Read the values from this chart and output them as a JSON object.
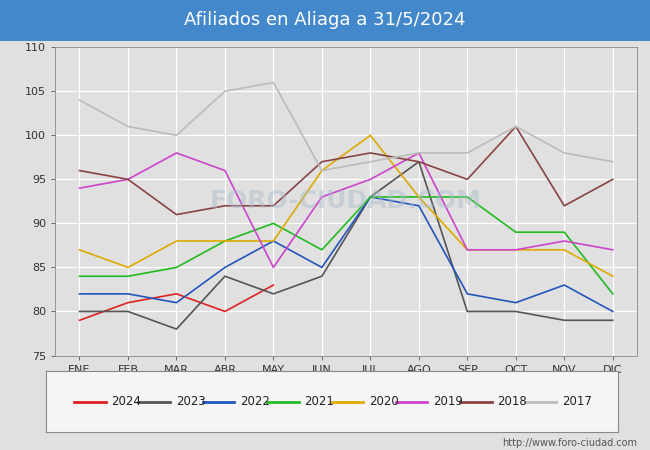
{
  "title": "Afiliados en Aliaga a 31/5/2024",
  "title_color": "#ffffff",
  "title_bg_color": "#4488cc",
  "xlabel": "",
  "ylabel": "",
  "ylim": [
    75,
    110
  ],
  "yticks": [
    75,
    80,
    85,
    90,
    95,
    100,
    105,
    110
  ],
  "months": [
    "ENE",
    "FEB",
    "MAR",
    "ABR",
    "MAY",
    "JUN",
    "JUL",
    "AGO",
    "SEP",
    "OCT",
    "NOV",
    "DIC"
  ],
  "watermark": "FORO-CIUDAD.COM",
  "url": "http://www.foro-ciudad.com",
  "series": {
    "2024": {
      "color": "#dd2222",
      "data": [
        79,
        81,
        82,
        80,
        83,
        null,
        null,
        null,
        null,
        null,
        null,
        null
      ]
    },
    "2023": {
      "color": "#555555",
      "data": [
        80,
        80,
        78,
        84,
        82,
        84,
        93,
        97,
        80,
        80,
        79,
        79
      ]
    },
    "2022": {
      "color": "#2255bb",
      "data": [
        82,
        82,
        81,
        85,
        88,
        85,
        93,
        92,
        82,
        81,
        83,
        80
      ]
    },
    "2021": {
      "color": "#22bb22",
      "data": [
        84,
        84,
        85,
        88,
        90,
        87,
        93,
        93,
        93,
        89,
        89,
        82
      ]
    },
    "2020": {
      "color": "#ddaa00",
      "data": [
        87,
        85,
        88,
        88,
        88,
        96,
        100,
        93,
        87,
        87,
        87,
        84
      ]
    },
    "2019": {
      "color": "#cc44cc",
      "data": [
        94,
        95,
        98,
        96,
        85,
        93,
        95,
        98,
        87,
        87,
        88,
        87
      ]
    },
    "2018": {
      "color": "#884444",
      "data": [
        96,
        95,
        91,
        92,
        92,
        97,
        98,
        97,
        95,
        101,
        92,
        95
      ]
    },
    "2017": {
      "color": "#bbbbbb",
      "data": [
        104,
        101,
        100,
        105,
        106,
        96,
        97,
        98,
        98,
        101,
        98,
        97
      ]
    }
  },
  "legend_order": [
    "2024",
    "2023",
    "2022",
    "2021",
    "2020",
    "2019",
    "2018",
    "2017"
  ],
  "bg_color": "#e0e0e0",
  "plot_bg_color": "#e0e0e0",
  "grid_color": "#ffffff"
}
